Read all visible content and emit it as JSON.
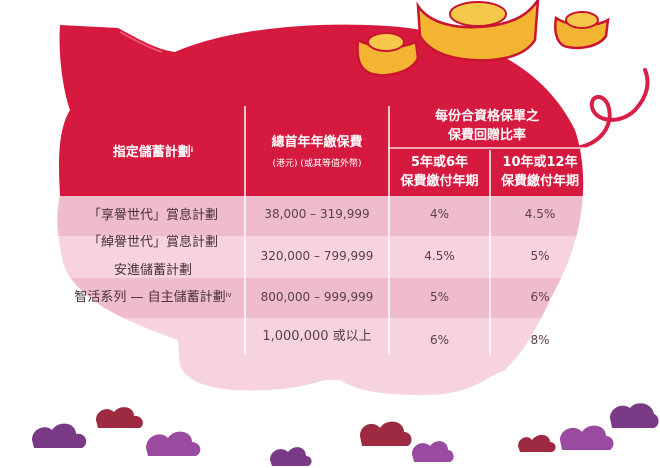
{
  "colors": {
    "header": "#d6193f",
    "body": "#f6d3dd",
    "band": "#efbccb",
    "tail": "#d91f46",
    "ingot": "#f3b431",
    "ingot_edge": "#c9152f",
    "cloud_purple": "#7a3a86",
    "cloud_red": "#9e2a42"
  },
  "header": {
    "col_plan": "指定儲蓄計劃",
    "col_plan_sup": "i",
    "col_premium": "總首年年繳保費",
    "col_premium_note": "(港元) (或其等值外幣)",
    "group_title_line1": "每份合資格保單之",
    "group_title_line2": "保費回贈比率",
    "sub_a_line1": "5年或6年",
    "sub_a_line2": "保費繳付年期",
    "sub_b_line1": "10年或12年",
    "sub_b_line2": "保費繳付年期"
  },
  "plans": [
    {
      "text": "「享譽世代」賞息計劃",
      "sup": ""
    },
    {
      "text": "「綽譽世代」賞息計劃",
      "sup": ""
    },
    {
      "text": "安進儲蓄計劃",
      "sup": ""
    },
    {
      "text": "智活系列 — 自主儲蓄計劃",
      "sup": "iv"
    }
  ],
  "rows": [
    {
      "premium": "38,000 – 319,999",
      "rate_a": "4%",
      "rate_b": "4.5%"
    },
    {
      "premium": "320,000 – 799,999",
      "rate_a": "4.5%",
      "rate_b": "5%"
    },
    {
      "premium": "800,000 – 999,999",
      "rate_a": "5%",
      "rate_b": "6%"
    },
    {
      "premium": "1,000,000 或以上",
      "rate_a": "6%",
      "rate_b": "8%"
    }
  ]
}
